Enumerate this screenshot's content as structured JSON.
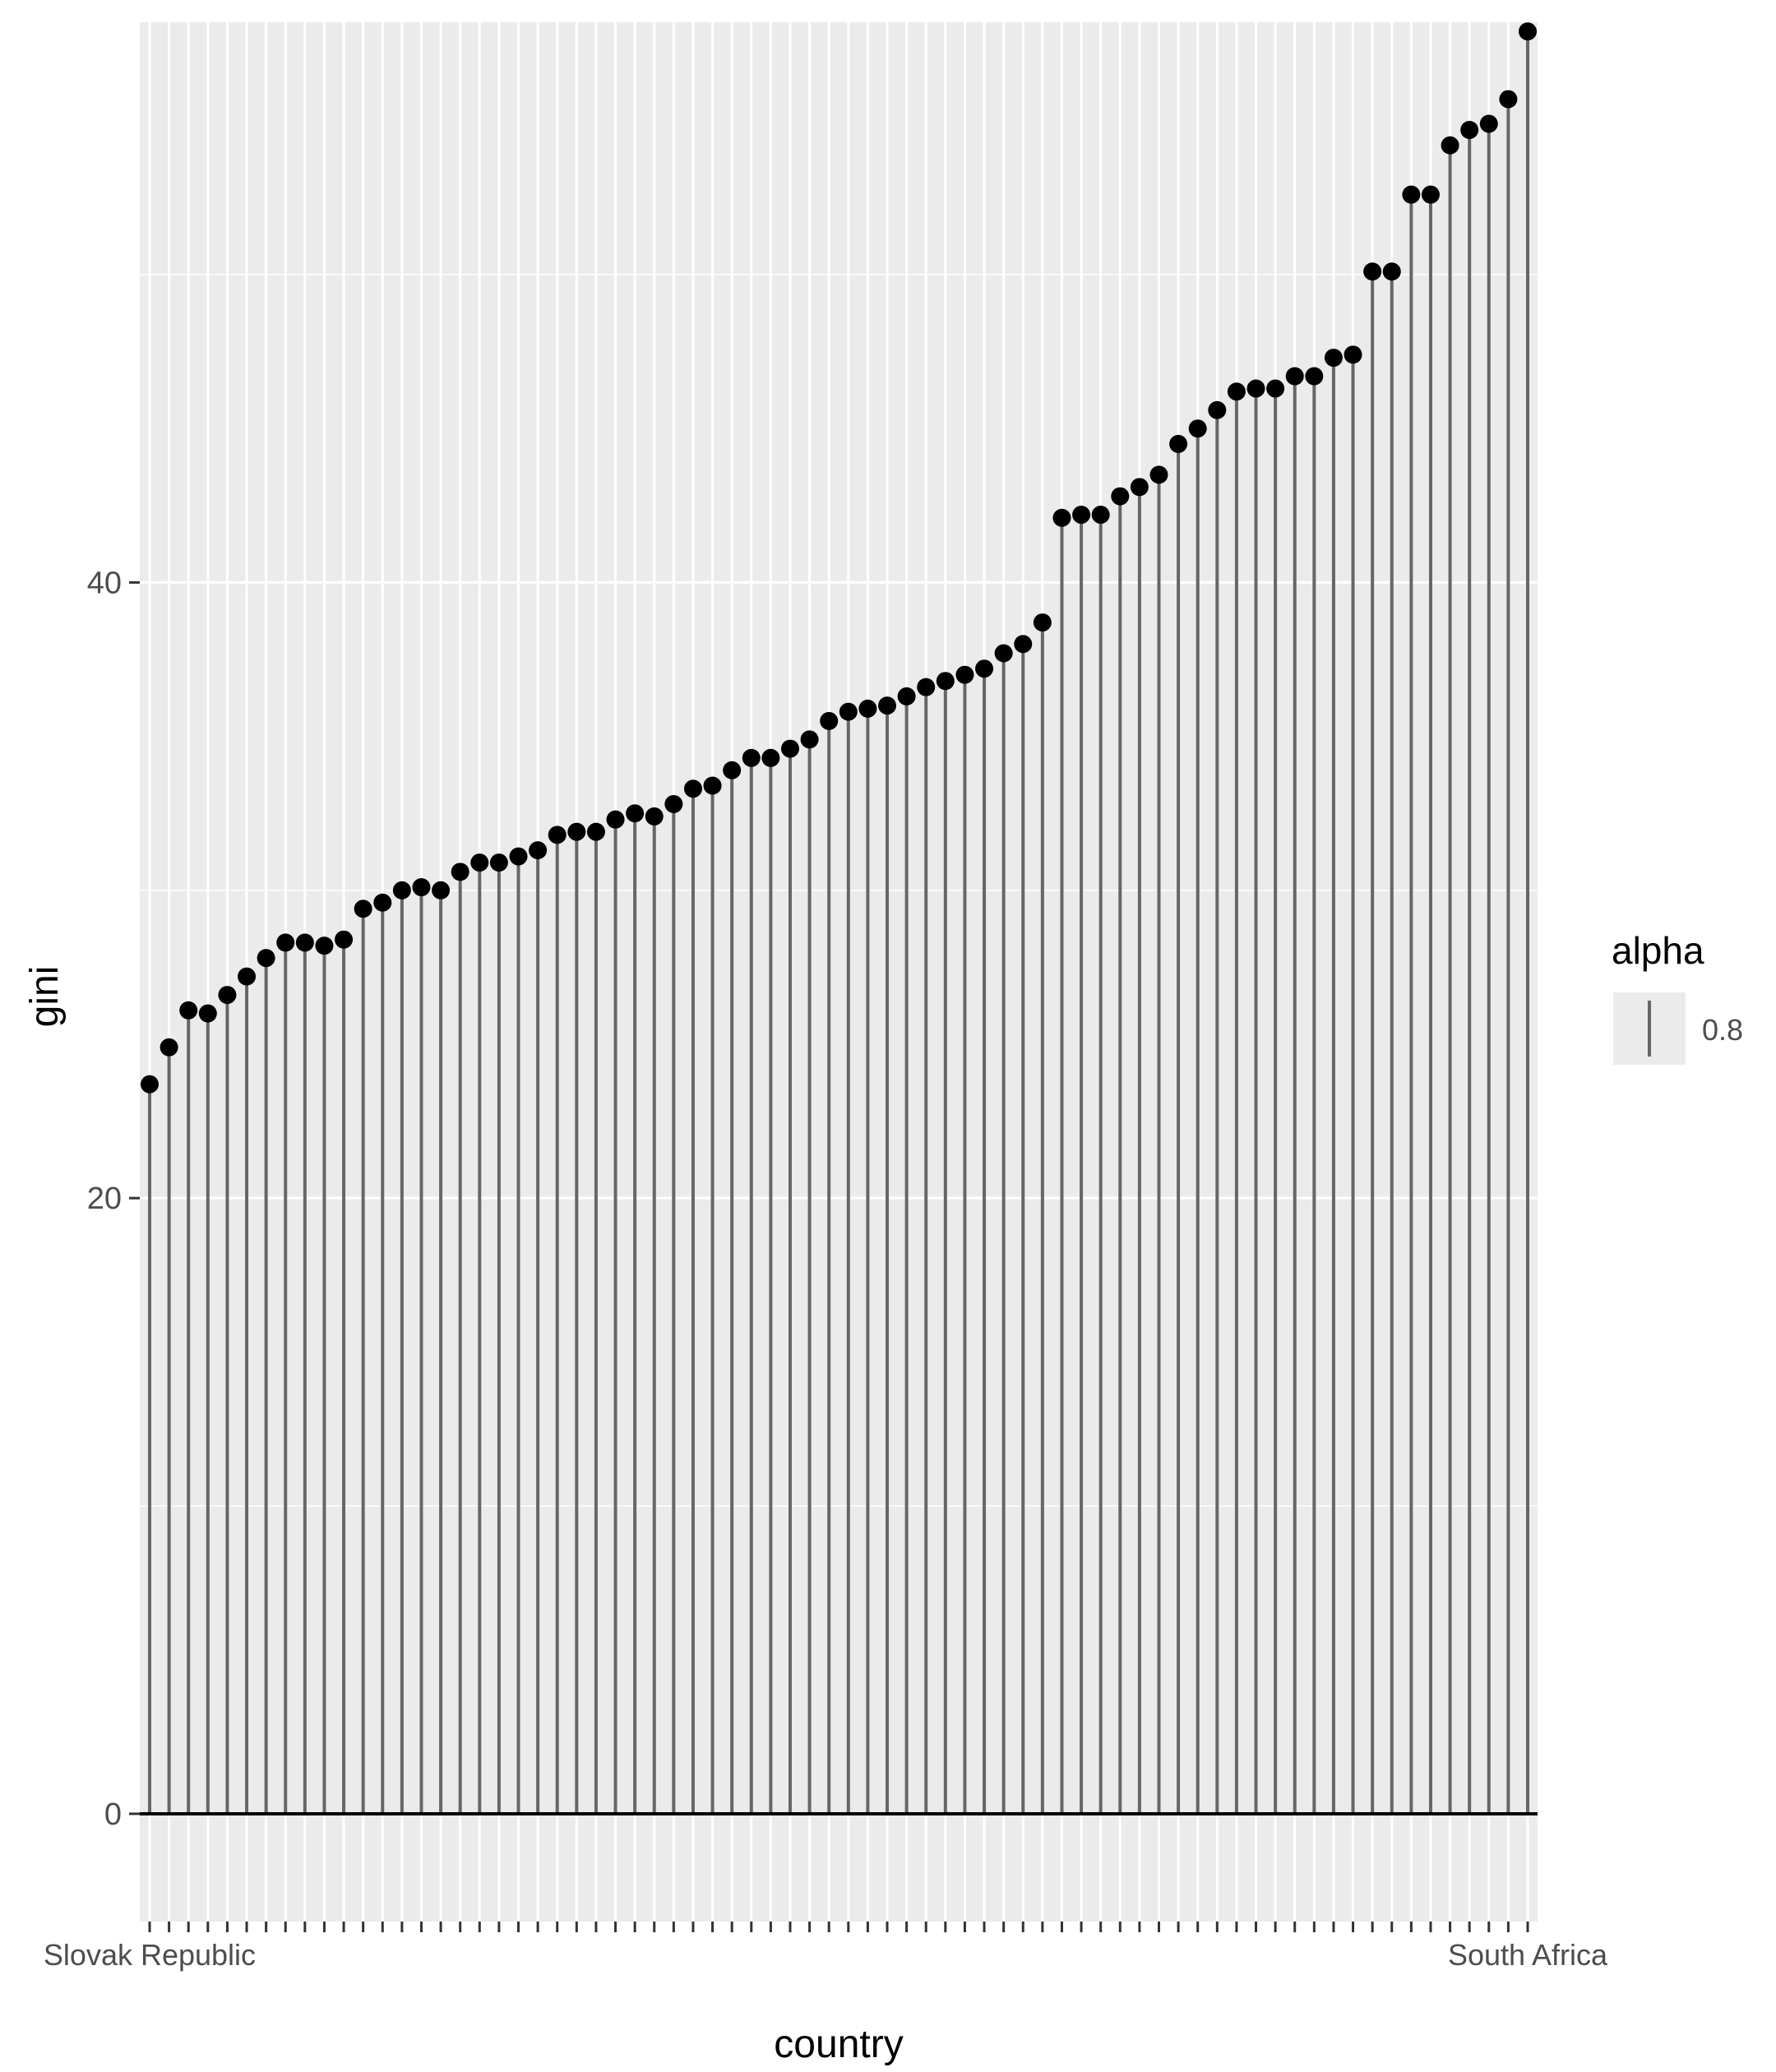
{
  "chart_data": {
    "type": "lollipop",
    "xlabel": "country",
    "ylabel": "gini",
    "ylim": [
      -3.5,
      58.2
    ],
    "yticks": [
      0,
      20,
      40
    ],
    "y_minor_gridlines": [
      10,
      30,
      50
    ],
    "grid": true,
    "legend": {
      "position": "right",
      "title": "alpha",
      "items": [
        {
          "label": "0.8",
          "color": "#666666"
        }
      ]
    },
    "colors": {
      "panel": "#ebebeb",
      "grid": "#ffffff",
      "segment": "#666666",
      "point": "#000000",
      "baseline": "#000000"
    },
    "visible_tick_labels": {
      "first": "Slovak Republic",
      "last": "South Africa"
    },
    "values": [
      23.7,
      24.9,
      26.1,
      26.0,
      26.6,
      27.2,
      27.8,
      28.3,
      28.3,
      28.2,
      28.4,
      29.4,
      29.6,
      30.0,
      30.1,
      30.0,
      30.6,
      30.9,
      30.9,
      31.1,
      31.3,
      31.8,
      31.9,
      31.9,
      32.3,
      32.5,
      32.4,
      32.8,
      33.3,
      33.4,
      33.9,
      34.3,
      34.3,
      34.6,
      34.9,
      35.5,
      35.8,
      35.9,
      36.0,
      36.3,
      36.6,
      36.8,
      37.0,
      37.2,
      37.7,
      38.0,
      38.7,
      42.1,
      42.2,
      42.2,
      42.8,
      43.1,
      43.5,
      44.5,
      45.0,
      45.6,
      46.2,
      46.3,
      46.3,
      46.7,
      46.7,
      47.3,
      47.4,
      50.1,
      50.1,
      52.6,
      52.6,
      54.2,
      54.7,
      54.9,
      55.7,
      57.9
    ]
  }
}
